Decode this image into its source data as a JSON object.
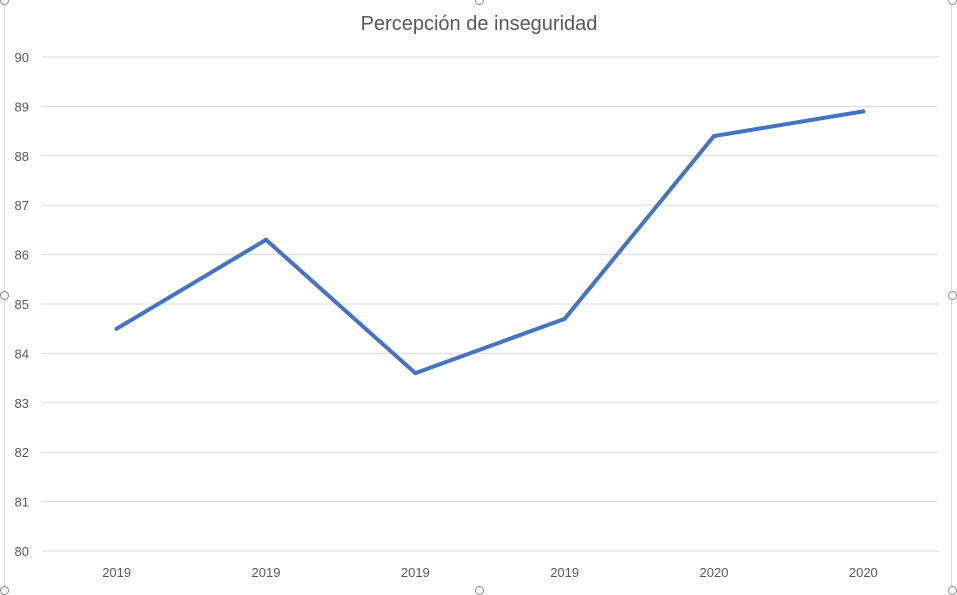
{
  "chart_data": {
    "type": "line",
    "title": "Percepción de inseguridad",
    "xlabel": "",
    "ylabel": "",
    "categories": [
      "2019",
      "2019",
      "2019",
      "2019",
      "2020",
      "2020"
    ],
    "series": [
      {
        "values": [
          84.5,
          86.3,
          83.6,
          84.7,
          88.4,
          88.9
        ],
        "color": "#4472c4"
      }
    ],
    "ylim": [
      80,
      90
    ],
    "y_ticks": [
      "80",
      "81",
      "82",
      "83",
      "84",
      "85",
      "86",
      "87",
      "88",
      "89",
      "90"
    ],
    "grid": true,
    "legend": "none",
    "gridline_color": "#d9d9d9"
  }
}
